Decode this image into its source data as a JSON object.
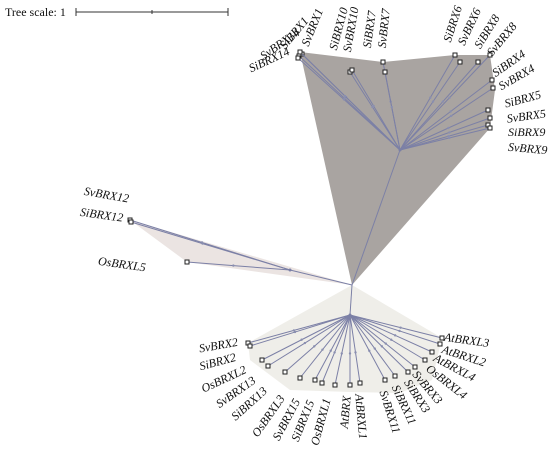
{
  "tree_scale": "Tree scale: 1",
  "clades": [
    {
      "leaves": [
        "SvBRX1",
        "SiBRX1",
        "SvBRX14",
        "SiBRX14",
        "SiBRX10",
        "SvBRX10",
        "SiBRX7",
        "SvBRX7",
        "SiBRX6",
        "SvBRX6",
        "SiBRX8",
        "SvBRX8",
        "SiBRX4",
        "SvBRX4",
        "SiBRX5",
        "SvBRX5",
        "SiBRX9",
        "SvBRX9"
      ]
    },
    {
      "leaves": [
        "SvBRX12",
        "SiBRX12",
        "OsBRXL5"
      ]
    },
    {
      "leaves": [
        "SvBRX2",
        "SiBRX2",
        "OsBRXL2",
        "SvBRX13",
        "SiBRX13",
        "OsBRXL3",
        "SvBRX15",
        "SiBRX15",
        "OsBRXL1",
        "AtBRX",
        "AtBRXL1",
        "SvBRX11",
        "SiBRX11",
        "SiBRX3",
        "SvBRX3",
        "OsBRXL4",
        "AtBRXL4",
        "AtBRXL2",
        "AtBRXL3"
      ]
    }
  ]
}
